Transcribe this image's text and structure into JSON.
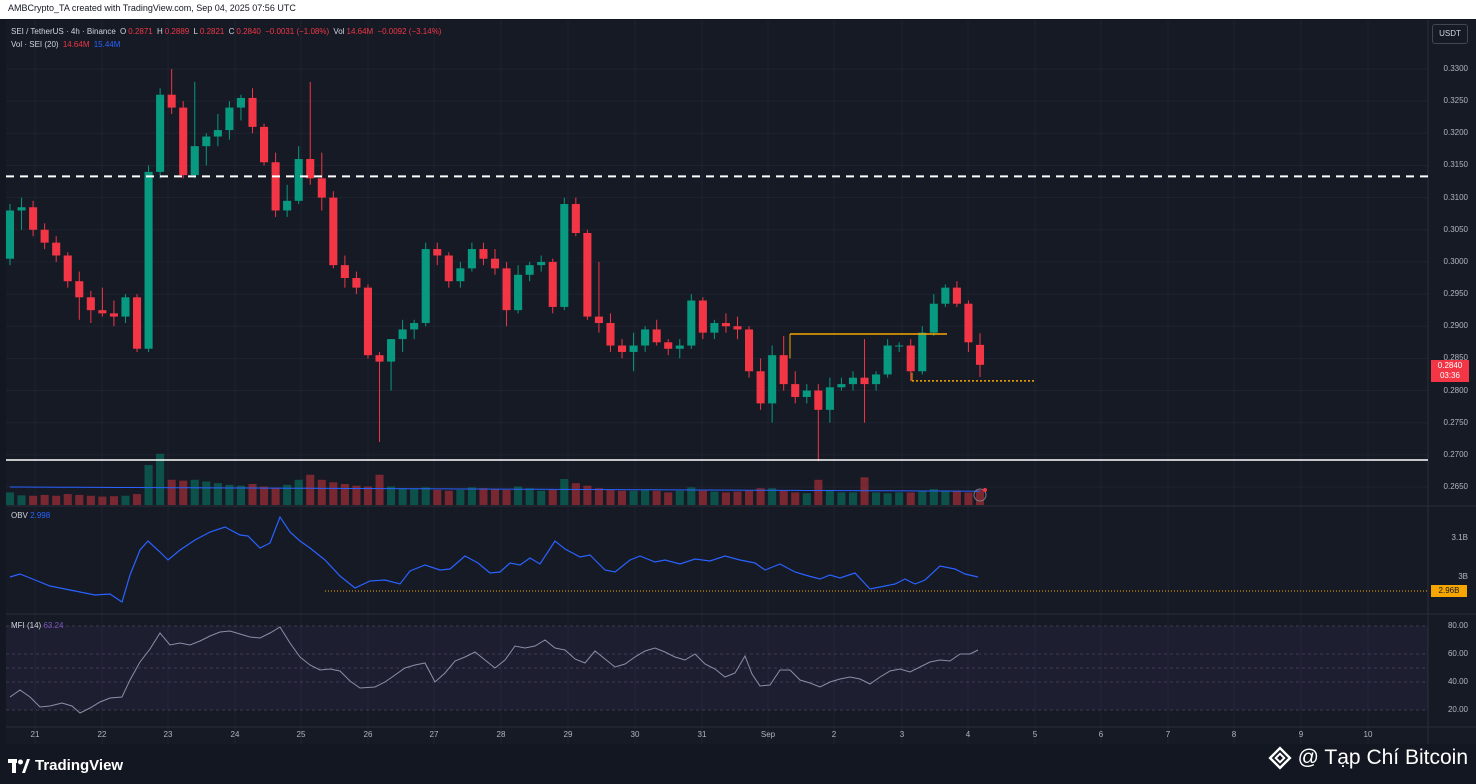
{
  "header": {
    "credit": "AMBCrypto_TA created with TradingView.com, Sep 04, 2025 07:56 UTC"
  },
  "legend": {
    "symbol": "SEI / TetherUS · 4h · Binance",
    "o_label": "O",
    "o": "0.2871",
    "h_label": "H",
    "h": "0.2889",
    "l_label": "L",
    "l": "0.2821",
    "c_label": "C",
    "c": "0.2840",
    "change": "−0.0031 (−1.08%)",
    "vol_label": "Vol",
    "vol": "14.64M",
    "vol_change": "−0.0092 (−3.14%)",
    "vol_line": "Vol · SEI (20)",
    "vol_a": "14.64M",
    "vol_b": "15.44M"
  },
  "currency_button": "USDT",
  "price_axis": [
    "0.3300",
    "0.3250",
    "0.3200",
    "0.3150",
    "0.3100",
    "0.3050",
    "0.3000",
    "0.2950",
    "0.2900",
    "0.2850",
    "0.2800",
    "0.2750",
    "0.2700",
    "0.2650"
  ],
  "price_tag": {
    "price": "0.2840",
    "countdown": "03:36"
  },
  "obv": {
    "label": "OBV",
    "value": "2.998",
    "axis": [
      "3.1B",
      "3B"
    ],
    "tag": "2.96B"
  },
  "mfi": {
    "label": "MFI (14)",
    "value": "63.24",
    "axis": [
      "80.00",
      "60.00",
      "40.00",
      "20.00"
    ]
  },
  "time_axis": [
    "21",
    "22",
    "23",
    "24",
    "25",
    "26",
    "27",
    "28",
    "29",
    "30",
    "31",
    "Sep",
    "2",
    "3",
    "4",
    "5",
    "6",
    "7",
    "8",
    "9",
    "10"
  ],
  "footer": {
    "brand": "TradingView",
    "watermark": "@ Tạp Chí Bitcoin"
  },
  "colors": {
    "up": "#089981",
    "down": "#f23645",
    "obv_line": "#2962ff",
    "mfi_line": "#7e57c2",
    "level": "#f7a600"
  },
  "chart_data": {
    "type": "candlestick",
    "candles": [
      [
        0.3005,
        0.309,
        0.2995,
        0.308
      ],
      [
        0.308,
        0.31,
        0.305,
        0.3085
      ],
      [
        0.3085,
        0.3095,
        0.304,
        0.305
      ],
      [
        0.305,
        0.306,
        0.302,
        0.303
      ],
      [
        0.303,
        0.304,
        0.3,
        0.301
      ],
      [
        0.301,
        0.3015,
        0.296,
        0.297
      ],
      [
        0.297,
        0.2985,
        0.291,
        0.2945
      ],
      [
        0.2945,
        0.2955,
        0.2905,
        0.2925
      ],
      [
        0.2925,
        0.296,
        0.2915,
        0.292
      ],
      [
        0.292,
        0.294,
        0.29,
        0.2915
      ],
      [
        0.2915,
        0.295,
        0.2905,
        0.2945
      ],
      [
        0.2945,
        0.295,
        0.286,
        0.2865
      ],
      [
        0.2865,
        0.315,
        0.286,
        0.314
      ],
      [
        0.314,
        0.327,
        0.313,
        0.326
      ],
      [
        0.326,
        0.33,
        0.323,
        0.324
      ],
      [
        0.324,
        0.325,
        0.313,
        0.3135
      ],
      [
        0.3135,
        0.328,
        0.313,
        0.318
      ],
      [
        0.318,
        0.32,
        0.315,
        0.3195
      ],
      [
        0.3195,
        0.323,
        0.318,
        0.3205
      ],
      [
        0.3205,
        0.325,
        0.319,
        0.324
      ],
      [
        0.324,
        0.326,
        0.322,
        0.3255
      ],
      [
        0.3255,
        0.327,
        0.32,
        0.321
      ],
      [
        0.321,
        0.3215,
        0.315,
        0.3155
      ],
      [
        0.3155,
        0.317,
        0.307,
        0.308
      ],
      [
        0.308,
        0.312,
        0.307,
        0.3095
      ],
      [
        0.3095,
        0.318,
        0.309,
        0.316
      ],
      [
        0.316,
        0.328,
        0.312,
        0.313
      ],
      [
        0.313,
        0.317,
        0.308,
        0.31
      ],
      [
        0.31,
        0.311,
        0.299,
        0.2995
      ],
      [
        0.2995,
        0.301,
        0.296,
        0.2975
      ],
      [
        0.2975,
        0.2985,
        0.295,
        0.296
      ],
      [
        0.296,
        0.2965,
        0.285,
        0.2855
      ],
      [
        0.2855,
        0.286,
        0.272,
        0.2845
      ],
      [
        0.2845,
        0.288,
        0.28,
        0.288
      ],
      [
        0.288,
        0.291,
        0.286,
        0.2895
      ],
      [
        0.2895,
        0.291,
        0.288,
        0.2905
      ],
      [
        0.2905,
        0.303,
        0.29,
        0.302
      ],
      [
        0.302,
        0.303,
        0.2995,
        0.301
      ],
      [
        0.301,
        0.3015,
        0.296,
        0.297
      ],
      [
        0.297,
        0.3,
        0.296,
        0.299
      ],
      [
        0.299,
        0.303,
        0.2985,
        0.302
      ],
      [
        0.302,
        0.303,
        0.2995,
        0.3005
      ],
      [
        0.3005,
        0.302,
        0.298,
        0.299
      ],
      [
        0.299,
        0.3,
        0.29,
        0.2925
      ],
      [
        0.2925,
        0.2995,
        0.292,
        0.298
      ],
      [
        0.298,
        0.3,
        0.297,
        0.2995
      ],
      [
        0.2995,
        0.301,
        0.2985,
        0.3
      ],
      [
        0.3,
        0.3005,
        0.292,
        0.293
      ],
      [
        0.293,
        0.31,
        0.2925,
        0.309
      ],
      [
        0.309,
        0.31,
        0.304,
        0.3045
      ],
      [
        0.3045,
        0.305,
        0.291,
        0.2915
      ],
      [
        0.2915,
        0.3,
        0.289,
        0.2905
      ],
      [
        0.2905,
        0.292,
        0.286,
        0.287
      ],
      [
        0.287,
        0.288,
        0.285,
        0.286
      ],
      [
        0.286,
        0.289,
        0.283,
        0.287
      ],
      [
        0.287,
        0.29,
        0.286,
        0.2895
      ],
      [
        0.2895,
        0.291,
        0.287,
        0.2875
      ],
      [
        0.2875,
        0.288,
        0.2855,
        0.2865
      ],
      [
        0.2865,
        0.288,
        0.285,
        0.287
      ],
      [
        0.287,
        0.295,
        0.2865,
        0.294
      ],
      [
        0.294,
        0.2945,
        0.288,
        0.289
      ],
      [
        0.289,
        0.291,
        0.288,
        0.2905
      ],
      [
        0.2905,
        0.292,
        0.289,
        0.29
      ],
      [
        0.29,
        0.2915,
        0.288,
        0.2895
      ],
      [
        0.2895,
        0.29,
        0.282,
        0.283
      ],
      [
        0.283,
        0.285,
        0.277,
        0.278
      ],
      [
        0.278,
        0.287,
        0.275,
        0.2855
      ],
      [
        0.2855,
        0.2885,
        0.28,
        0.281
      ],
      [
        0.281,
        0.283,
        0.278,
        0.279
      ],
      [
        0.279,
        0.281,
        0.278,
        0.28
      ],
      [
        0.28,
        0.281,
        0.269,
        0.277
      ],
      [
        0.277,
        0.282,
        0.275,
        0.2805
      ],
      [
        0.2805,
        0.282,
        0.28,
        0.281
      ],
      [
        0.281,
        0.283,
        0.28,
        0.282
      ],
      [
        0.282,
        0.288,
        0.275,
        0.281
      ],
      [
        0.281,
        0.283,
        0.28,
        0.2825
      ],
      [
        0.2825,
        0.288,
        0.282,
        0.287
      ],
      [
        0.287,
        0.2875,
        0.286,
        0.287
      ],
      [
        0.287,
        0.288,
        0.2815,
        0.283
      ],
      [
        0.283,
        0.29,
        0.2825,
        0.289
      ],
      [
        0.289,
        0.295,
        0.2885,
        0.2935
      ],
      [
        0.2935,
        0.2965,
        0.293,
        0.296
      ],
      [
        0.296,
        0.297,
        0.293,
        0.2935
      ],
      [
        0.2935,
        0.294,
        0.286,
        0.2875
      ],
      [
        0.2871,
        0.2889,
        0.2821,
        0.284
      ]
    ],
    "levels": {
      "dashed_resistance": 0.3133,
      "support": 0.2692,
      "orange_high": 0.2888,
      "orange_low_dotted": 0.2815
    },
    "ylim": [
      0.2625,
      0.3345
    ]
  }
}
